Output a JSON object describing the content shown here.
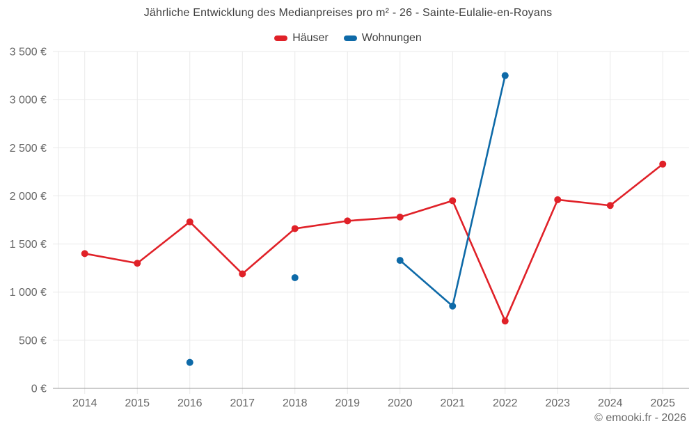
{
  "header": {
    "title": "Jährliche Entwicklung des Medianpreises pro m² - 26 - Sainte-Eulalie-en-Royans"
  },
  "legend": {
    "items": [
      {
        "label": "Häuser",
        "color": "#e02128"
      },
      {
        "label": "Wohnungen",
        "color": "#0e6aa8"
      }
    ]
  },
  "footer": {
    "credit": "© emooki.fr - 2026"
  },
  "colors": {
    "hauser_red": "#e02128",
    "wohnungen_blue": "#0e6aa8",
    "gridline": "#e9e9e9",
    "axis_line": "#999999",
    "tick_label": "#666666",
    "title_text": "#3f3f3f"
  },
  "chart_data": {
    "type": "line",
    "title": "Jährliche Entwicklung des Medianpreises pro m² - 26 - Sainte-Eulalie-en-Royans",
    "x": [
      "2014",
      "2015",
      "2016",
      "2017",
      "2018",
      "2019",
      "2020",
      "2021",
      "2022",
      "2023",
      "2024",
      "2025"
    ],
    "series": [
      {
        "name": "Häuser",
        "color": "#e02128",
        "values": [
          1400,
          1300,
          1730,
          1190,
          1660,
          1740,
          1780,
          1950,
          700,
          1960,
          1900,
          2330
        ]
      },
      {
        "name": "Wohnungen",
        "color": "#0e6aa8",
        "values": [
          null,
          null,
          270,
          null,
          1150,
          null,
          1330,
          855,
          3250,
          null,
          null,
          null
        ]
      }
    ],
    "xlabel": "",
    "ylabel": "",
    "ylim": [
      0,
      3500
    ],
    "y_ticks": [
      0,
      500,
      1000,
      1500,
      2000,
      2500,
      3000,
      3500
    ],
    "y_tick_labels": [
      "0 €",
      "500 €",
      "1 000 €",
      "1 500 €",
      "2 000 €",
      "2 500 €",
      "3 000 €",
      "3 500 €"
    ],
    "grid": true,
    "legend_position": "top",
    "marker": "circle",
    "gap_handling": "isolated points shown as dots (no line across missing years)"
  }
}
